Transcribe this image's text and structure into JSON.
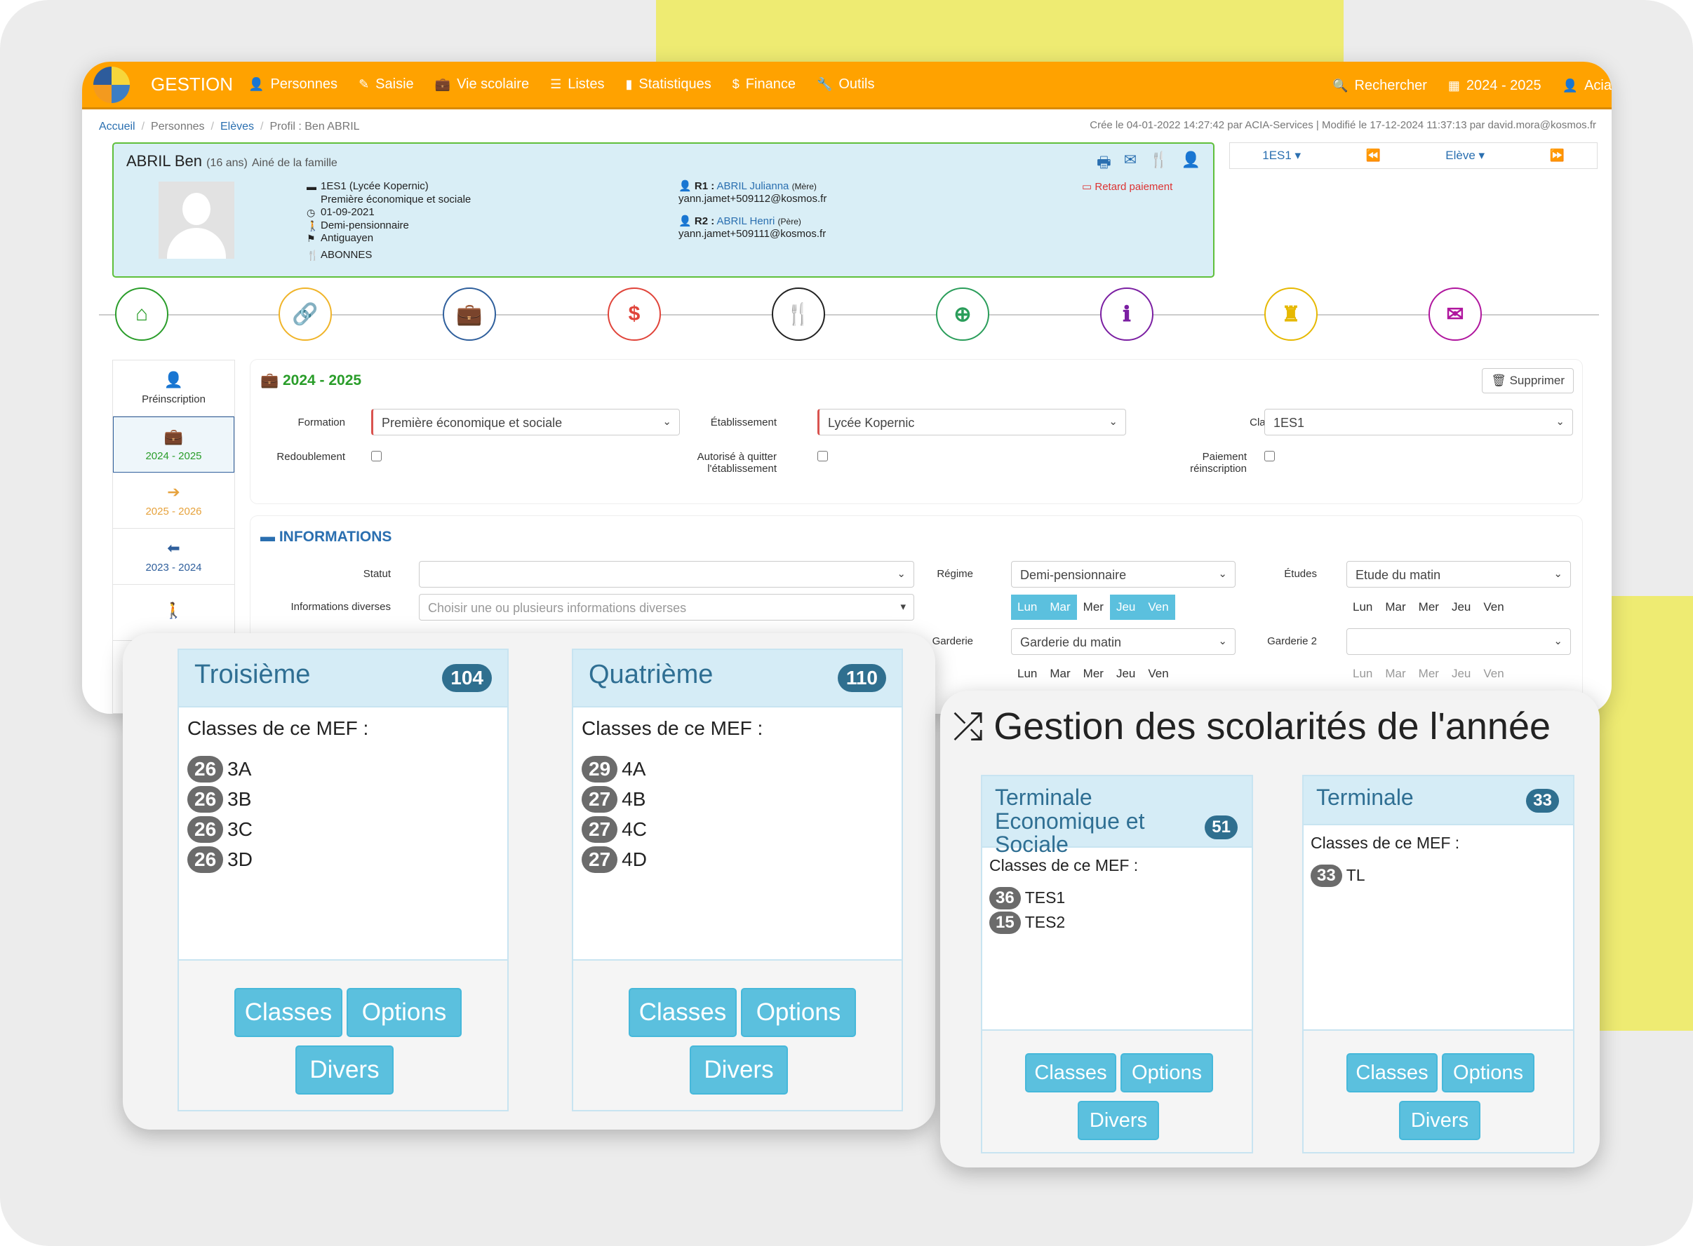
{
  "nav": {
    "brand": "GESTION",
    "items": [
      {
        "icon": "user-icon",
        "glyph": "👤",
        "label": "Personnes"
      },
      {
        "icon": "edit-icon",
        "glyph": "✎",
        "label": "Saisie"
      },
      {
        "icon": "briefcase-icon",
        "glyph": "💼",
        "label": "Vie scolaire"
      },
      {
        "icon": "list-icon",
        "glyph": "☰",
        "label": "Listes"
      },
      {
        "icon": "bar-chart-icon",
        "glyph": "▮",
        "label": "Statistiques"
      },
      {
        "icon": "dollar-icon",
        "glyph": "$",
        "label": "Finance"
      },
      {
        "icon": "wrench-icon",
        "glyph": "🔧",
        "label": "Outils"
      }
    ],
    "search": "Rechercher",
    "year": "2024 - 2025",
    "user": "Acia"
  },
  "breadcrumb": {
    "home": "Accueil",
    "persons": "Personnes",
    "students": "Elèves",
    "current": "Profil : Ben ABRIL"
  },
  "meta": "Crée le 04-01-2022 14:27:42 par ACIA-Services | Modifié le 17-12-2024 11:37:13 par david.mora@kosmos.fr",
  "profile": {
    "name": "ABRIL Ben",
    "age": "(16 ans)",
    "note": "Ainé de la famille",
    "info": [
      {
        "glyph": "▬",
        "text": "1ES1 (Lycée Kopernic)"
      },
      {
        "glyph": "",
        "text": "Première économique et sociale"
      },
      {
        "glyph": "◷",
        "text": "01-09-2021"
      },
      {
        "glyph": "🚶",
        "text": "Demi-pensionnaire"
      },
      {
        "glyph": "⚑",
        "text": "Antiguayen"
      },
      {
        "glyph": "🍴",
        "text": "ABONNES"
      }
    ],
    "r1": {
      "label": "R1 :",
      "name": "ABRIL Julianna",
      "rel": "(Mère)",
      "email": "yann.jamet+509112@kosmos.fr"
    },
    "r2": {
      "label": "R2 :",
      "name": "ABRIL Henri",
      "rel": "(Père)",
      "email": "yann.jamet+509111@kosmos.fr"
    },
    "late": "Retard paiement"
  },
  "pnav": {
    "classe": "1ES1 ▾",
    "prev": "⏪",
    "eleve": "Elève ▾",
    "next": "⏩"
  },
  "tabs": [
    {
      "name": "home-icon",
      "glyph": "⌂",
      "color": "#2a9d2a"
    },
    {
      "name": "link-icon",
      "glyph": "🔗",
      "color": "#f0b429"
    },
    {
      "name": "briefcase-icon",
      "glyph": "💼",
      "color": "#2f5f9c"
    },
    {
      "name": "dollar-icon",
      "glyph": "$",
      "color": "#e0443a"
    },
    {
      "name": "cutlery-icon",
      "glyph": "🍴",
      "color": "#222222"
    },
    {
      "name": "plus-circle-icon",
      "glyph": "⊕",
      "color": "#2a9d5a"
    },
    {
      "name": "info-icon",
      "glyph": "ℹ",
      "color": "#7b1fa2"
    },
    {
      "name": "chess-rook-icon",
      "glyph": "♜",
      "color": "#e6b800"
    },
    {
      "name": "envelope-icon",
      "glyph": "✉",
      "color": "#b0169e"
    }
  ],
  "side": [
    {
      "glyph": "👤",
      "label": "Préinscription",
      "color": "#7a4a1e"
    },
    {
      "glyph": "💼",
      "label": "2024 - 2025",
      "color": "#2a9d2a"
    },
    {
      "glyph": "➔",
      "label": "2025 - 2026",
      "color": "#e6a23c"
    },
    {
      "glyph": "⬅",
      "label": "2023 - 2024",
      "color": "#2f5f9c"
    },
    {
      "glyph": "🚶",
      "label": "",
      "color": "#e0443a"
    }
  ],
  "year_panel": {
    "title": "2024 - 2025",
    "delete": "Supprimer",
    "formation_label": "Formation",
    "formation_value": "Première économique et sociale",
    "etab_label": "Établissement",
    "etab_value": "Lycée Kopernic",
    "classe_label": "Classe",
    "classe_value": "1ES1",
    "redoublement": "Redoublement",
    "autorise": "Autorisé à quitter l'établissement",
    "paiement": "Paiement réinscription"
  },
  "info_panel": {
    "title": "INFORMATIONS",
    "statut_label": "Statut",
    "divers_label": "Informations diverses",
    "divers_placeholder": "Choisir une ou plusieurs informations diverses",
    "regime_label": "Régime",
    "regime_value": "Demi-pensionnaire",
    "etudes_label": "Études",
    "etudes_value": "Etude du matin",
    "garderie_label": "Garderie",
    "garderie_value": "Garderie du matin",
    "garderie2_label": "Garderie 2",
    "days": [
      "Lun",
      "Mar",
      "Mer",
      "Jeu",
      "Ven"
    ]
  },
  "mef_label": "Classes de ce MEF :",
  "buttons": {
    "classes": "Classes",
    "options": "Options",
    "divers": "Divers"
  },
  "mef_left": [
    {
      "title": "Troisième",
      "count": "104",
      "classes": [
        {
          "n": "26",
          "c": "3A"
        },
        {
          "n": "26",
          "c": "3B"
        },
        {
          "n": "26",
          "c": "3C"
        },
        {
          "n": "26",
          "c": "3D"
        }
      ]
    },
    {
      "title": "Quatrième",
      "count": "110",
      "classes": [
        {
          "n": "29",
          "c": "4A"
        },
        {
          "n": "27",
          "c": "4B"
        },
        {
          "n": "27",
          "c": "4C"
        },
        {
          "n": "27",
          "c": "4D"
        }
      ]
    }
  ],
  "gestion_title": "Gestion des scolarités de l'année",
  "mef_right": [
    {
      "title": "Terminale Economique et Sociale",
      "count": "51",
      "classes": [
        {
          "n": "36",
          "c": "TES1"
        },
        {
          "n": "15",
          "c": "TES2"
        }
      ]
    },
    {
      "title": "Terminale",
      "count": "33",
      "classes": [
        {
          "n": "33",
          "c": "TL"
        }
      ]
    }
  ]
}
